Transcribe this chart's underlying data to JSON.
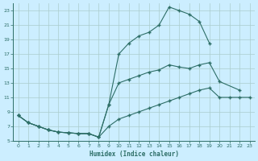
{
  "title": "",
  "xlabel": "Humidex (Indice chaleur)",
  "bg_color": "#cceeff",
  "line_color": "#2d6e66",
  "grid_color": "#aacccc",
  "xlim": [
    -0.5,
    23.5
  ],
  "ylim": [
    5,
    24
  ],
  "yticks": [
    5,
    7,
    9,
    11,
    13,
    15,
    17,
    19,
    21,
    23
  ],
  "xticks": [
    0,
    1,
    2,
    3,
    4,
    5,
    6,
    7,
    8,
    9,
    10,
    11,
    12,
    13,
    14,
    15,
    16,
    17,
    18,
    19,
    20,
    21,
    22,
    23
  ],
  "line1_x": [
    0,
    1,
    2,
    3,
    4,
    5,
    6,
    7,
    8,
    9,
    10,
    11,
    12,
    13,
    14,
    15,
    16,
    17,
    18,
    19
  ],
  "line1_y": [
    8.5,
    7.5,
    7.0,
    6.5,
    6.2,
    6.1,
    6.0,
    6.0,
    5.5,
    10.0,
    17.0,
    18.5,
    19.5,
    20.0,
    21.0,
    23.5,
    23.0,
    22.5,
    21.5,
    18.5
  ],
  "line2_x": [
    0,
    1,
    2,
    3,
    4,
    5,
    6,
    7,
    8,
    9,
    10,
    11,
    12,
    13,
    14,
    15,
    16,
    17,
    18,
    19,
    20,
    22
  ],
  "line2_y": [
    8.5,
    7.5,
    7.0,
    6.5,
    6.2,
    6.1,
    6.0,
    6.0,
    5.5,
    10.0,
    13.0,
    13.5,
    14.0,
    14.5,
    14.8,
    15.5,
    15.2,
    15.0,
    15.5,
    15.8,
    13.2,
    12.0
  ],
  "line3_x": [
    0,
    1,
    2,
    3,
    4,
    5,
    6,
    7,
    8,
    9,
    10,
    11,
    12,
    13,
    14,
    15,
    16,
    17,
    18,
    19,
    20,
    21,
    22,
    23
  ],
  "line3_y": [
    8.5,
    7.5,
    7.0,
    6.5,
    6.2,
    6.1,
    6.0,
    6.0,
    5.5,
    7.0,
    8.0,
    8.5,
    9.0,
    9.5,
    10.0,
    10.5,
    11.0,
    11.5,
    12.0,
    12.3,
    11.0,
    11.0,
    11.0,
    11.0
  ]
}
